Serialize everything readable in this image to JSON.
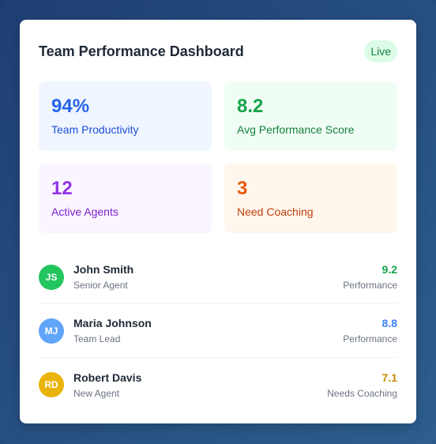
{
  "header": {
    "title": "Team Performance Dashboard",
    "badge": "Live"
  },
  "stats": [
    {
      "value": "94%",
      "label": "Team Productivity",
      "color": "#2563eb"
    },
    {
      "value": "8.2",
      "label": "Avg Performance Score",
      "color": "#16a34a"
    },
    {
      "value": "12",
      "label": "Active Agents",
      "color": "#9333ea"
    },
    {
      "value": "3",
      "label": "Need Coaching",
      "color": "#ea580c"
    }
  ],
  "agents": [
    {
      "initials": "JS",
      "name": "John Smith",
      "role": "Senior Agent",
      "score": "9.2",
      "score_label": "Performance",
      "avatar_color": "#22c55e",
      "score_color": "#16a34a"
    },
    {
      "initials": "MJ",
      "name": "Maria Johnson",
      "role": "Team Lead",
      "score": "8.8",
      "score_label": "Performance",
      "avatar_color": "#60a5fa",
      "score_color": "#3b82f6"
    },
    {
      "initials": "RD",
      "name": "Robert Davis",
      "role": "New Agent",
      "score": "7.1",
      "score_label": "Needs Coaching",
      "avatar_color": "#eab308",
      "score_color": "#ca8a04"
    }
  ]
}
